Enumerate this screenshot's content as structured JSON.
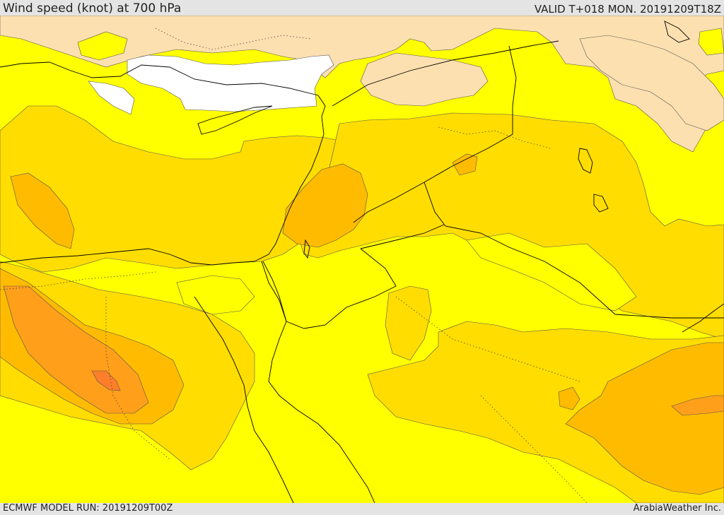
{
  "header": {
    "title": "Wind speed (knot) at 700 hPa",
    "valid": "VALID T+018 MON. 20191209T18Z"
  },
  "footer": {
    "model_run": "ECMWF MODEL RUN: 20191209T00Z",
    "credit": "ArabiaWeather Inc."
  },
  "colors": {
    "sea_calm": "#ffffff",
    "band_low": "#fde0b0",
    "band_1": "#ffff00",
    "band_2": "#ffdd00",
    "band_3": "#ffbb00",
    "band_4": "#ff9f1a",
    "band_5": "#ff7e2a",
    "coastline": "#000000",
    "border": "#000000"
  }
}
